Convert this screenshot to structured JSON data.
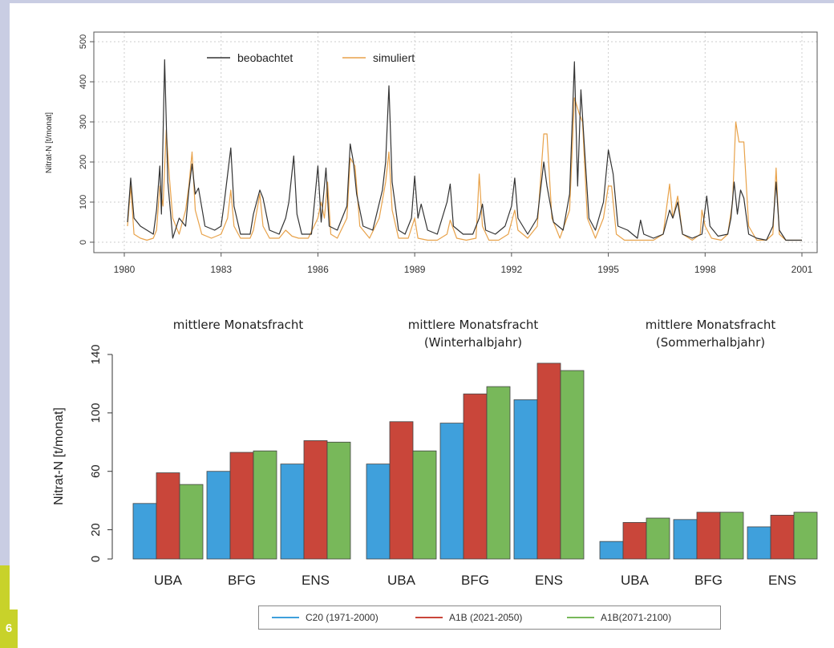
{
  "figure_number": "6",
  "chart_data": [
    {
      "type": "line",
      "xlabel": "",
      "ylabel": "Nitrat-N [t/monat]",
      "xlim": [
        1980,
        2001
      ],
      "ylim": [
        0,
        500
      ],
      "x_ticks": [
        "1980",
        "1983",
        "1986",
        "1989",
        "1992",
        "1995",
        "1998",
        "2001"
      ],
      "y_ticks": [
        "0",
        "100",
        "200",
        "300",
        "400",
        "500"
      ],
      "grid": true,
      "legend": {
        "placement": "top-left",
        "entries": [
          "beobachtet",
          "simuliert"
        ]
      },
      "series": [
        {
          "name": "beobachtet",
          "color": "#333333",
          "points": [
            [
              1980.1,
              50
            ],
            [
              1980.2,
              160
            ],
            [
              1980.3,
              60
            ],
            [
              1980.5,
              40
            ],
            [
              1980.7,
              30
            ],
            [
              1980.9,
              20
            ],
            [
              1981.0,
              80
            ],
            [
              1981.1,
              190
            ],
            [
              1981.15,
              70
            ],
            [
              1981.25,
              455
            ],
            [
              1981.35,
              150
            ],
            [
              1981.5,
              10
            ],
            [
              1981.7,
              60
            ],
            [
              1981.9,
              40
            ],
            [
              1982.0,
              130
            ],
            [
              1982.1,
              195
            ],
            [
              1982.2,
              120
            ],
            [
              1982.3,
              135
            ],
            [
              1982.5,
              40
            ],
            [
              1982.8,
              30
            ],
            [
              1983.0,
              40
            ],
            [
              1983.1,
              100
            ],
            [
              1983.3,
              235
            ],
            [
              1983.4,
              90
            ],
            [
              1983.6,
              20
            ],
            [
              1983.9,
              20
            ],
            [
              1984.0,
              70
            ],
            [
              1984.2,
              130
            ],
            [
              1984.3,
              110
            ],
            [
              1984.5,
              30
            ],
            [
              1984.8,
              20
            ],
            [
              1985.0,
              60
            ],
            [
              1985.1,
              100
            ],
            [
              1985.25,
              215
            ],
            [
              1985.35,
              70
            ],
            [
              1985.5,
              20
            ],
            [
              1985.8,
              20
            ],
            [
              1986.0,
              190
            ],
            [
              1986.1,
              50
            ],
            [
              1986.25,
              185
            ],
            [
              1986.35,
              40
            ],
            [
              1986.6,
              30
            ],
            [
              1986.9,
              90
            ],
            [
              1987.0,
              245
            ],
            [
              1987.1,
              200
            ],
            [
              1987.2,
              120
            ],
            [
              1987.4,
              40
            ],
            [
              1987.7,
              30
            ],
            [
              1988.0,
              130
            ],
            [
              1988.1,
              200
            ],
            [
              1988.2,
              390
            ],
            [
              1988.3,
              150
            ],
            [
              1988.5,
              30
            ],
            [
              1988.7,
              20
            ],
            [
              1988.9,
              60
            ],
            [
              1989.0,
              165
            ],
            [
              1989.1,
              60
            ],
            [
              1989.2,
              95
            ],
            [
              1989.4,
              30
            ],
            [
              1989.7,
              20
            ],
            [
              1990.0,
              100
            ],
            [
              1990.1,
              145
            ],
            [
              1990.2,
              40
            ],
            [
              1990.5,
              20
            ],
            [
              1990.8,
              20
            ],
            [
              1991.0,
              60
            ],
            [
              1991.1,
              95
            ],
            [
              1991.2,
              30
            ],
            [
              1991.5,
              20
            ],
            [
              1991.8,
              40
            ],
            [
              1992.0,
              90
            ],
            [
              1992.1,
              160
            ],
            [
              1992.2,
              60
            ],
            [
              1992.5,
              20
            ],
            [
              1992.8,
              60
            ],
            [
              1993.0,
              200
            ],
            [
              1993.1,
              140
            ],
            [
              1993.3,
              50
            ],
            [
              1993.6,
              30
            ],
            [
              1993.8,
              120
            ],
            [
              1993.95,
              450
            ],
            [
              1994.05,
              140
            ],
            [
              1994.15,
              380
            ],
            [
              1994.25,
              250
            ],
            [
              1994.4,
              60
            ],
            [
              1994.6,
              30
            ],
            [
              1994.85,
              100
            ],
            [
              1995.0,
              230
            ],
            [
              1995.15,
              170
            ],
            [
              1995.3,
              40
            ],
            [
              1995.6,
              30
            ],
            [
              1995.9,
              10
            ],
            [
              1996.0,
              55
            ],
            [
              1996.1,
              20
            ],
            [
              1996.4,
              10
            ],
            [
              1996.7,
              20
            ],
            [
              1996.9,
              80
            ],
            [
              1997.0,
              60
            ],
            [
              1997.15,
              100
            ],
            [
              1997.3,
              20
            ],
            [
              1997.6,
              10
            ],
            [
              1997.9,
              20
            ],
            [
              1998.05,
              115
            ],
            [
              1998.15,
              40
            ],
            [
              1998.4,
              15
            ],
            [
              1998.7,
              20
            ],
            [
              1998.8,
              60
            ],
            [
              1998.9,
              150
            ],
            [
              1999.0,
              70
            ],
            [
              1999.1,
              130
            ],
            [
              1999.2,
              110
            ],
            [
              1999.35,
              20
            ],
            [
              1999.6,
              10
            ],
            [
              1999.9,
              5
            ],
            [
              2000.1,
              40
            ],
            [
              2000.2,
              150
            ],
            [
              2000.3,
              30
            ],
            [
              2000.5,
              5
            ],
            [
              2000.8,
              5
            ],
            [
              2001.0,
              5
            ]
          ]
        },
        {
          "name": "simuliert",
          "color": "#e8a24a",
          "points": [
            [
              1980.1,
              40
            ],
            [
              1980.2,
              140
            ],
            [
              1980.3,
              20
            ],
            [
              1980.5,
              10
            ],
            [
              1980.7,
              5
            ],
            [
              1980.9,
              10
            ],
            [
              1981.0,
              30
            ],
            [
              1981.1,
              140
            ],
            [
              1981.2,
              90
            ],
            [
              1981.3,
              280
            ],
            [
              1981.4,
              160
            ],
            [
              1981.5,
              60
            ],
            [
              1981.7,
              20
            ],
            [
              1981.9,
              80
            ],
            [
              1982.0,
              140
            ],
            [
              1982.1,
              225
            ],
            [
              1982.2,
              80
            ],
            [
              1982.4,
              20
            ],
            [
              1982.7,
              10
            ],
            [
              1983.0,
              20
            ],
            [
              1983.2,
              60
            ],
            [
              1983.3,
              130
            ],
            [
              1983.4,
              40
            ],
            [
              1983.6,
              10
            ],
            [
              1983.9,
              10
            ],
            [
              1984.0,
              30
            ],
            [
              1984.2,
              120
            ],
            [
              1984.3,
              40
            ],
            [
              1984.5,
              10
            ],
            [
              1984.8,
              10
            ],
            [
              1985.0,
              30
            ],
            [
              1985.2,
              15
            ],
            [
              1985.4,
              10
            ],
            [
              1985.7,
              10
            ],
            [
              1986.0,
              60
            ],
            [
              1986.1,
              100
            ],
            [
              1986.2,
              60
            ],
            [
              1986.3,
              150
            ],
            [
              1986.4,
              20
            ],
            [
              1986.6,
              10
            ],
            [
              1986.9,
              60
            ],
            [
              1987.0,
              210
            ],
            [
              1987.15,
              190
            ],
            [
              1987.3,
              40
            ],
            [
              1987.6,
              10
            ],
            [
              1987.9,
              60
            ],
            [
              1988.1,
              150
            ],
            [
              1988.2,
              225
            ],
            [
              1988.3,
              80
            ],
            [
              1988.5,
              10
            ],
            [
              1988.8,
              10
            ],
            [
              1989.0,
              60
            ],
            [
              1989.1,
              10
            ],
            [
              1989.4,
              5
            ],
            [
              1989.7,
              5
            ],
            [
              1990.0,
              20
            ],
            [
              1990.1,
              55
            ],
            [
              1990.3,
              10
            ],
            [
              1990.6,
              5
            ],
            [
              1990.9,
              10
            ],
            [
              1991.0,
              170
            ],
            [
              1991.1,
              40
            ],
            [
              1991.3,
              5
            ],
            [
              1991.6,
              5
            ],
            [
              1991.9,
              20
            ],
            [
              1992.1,
              80
            ],
            [
              1992.2,
              30
            ],
            [
              1992.5,
              10
            ],
            [
              1992.8,
              40
            ],
            [
              1993.0,
              270
            ],
            [
              1993.1,
              270
            ],
            [
              1993.25,
              60
            ],
            [
              1993.5,
              10
            ],
            [
              1993.8,
              80
            ],
            [
              1993.95,
              360
            ],
            [
              1994.1,
              320
            ],
            [
              1994.2,
              300
            ],
            [
              1994.35,
              60
            ],
            [
              1994.6,
              10
            ],
            [
              1994.85,
              60
            ],
            [
              1995.0,
              140
            ],
            [
              1995.1,
              140
            ],
            [
              1995.25,
              20
            ],
            [
              1995.5,
              5
            ],
            [
              1995.8,
              5
            ],
            [
              1996.1,
              5
            ],
            [
              1996.4,
              5
            ],
            [
              1996.7,
              20
            ],
            [
              1996.9,
              145
            ],
            [
              1997.0,
              60
            ],
            [
              1997.15,
              115
            ],
            [
              1997.3,
              20
            ],
            [
              1997.6,
              5
            ],
            [
              1997.85,
              20
            ],
            [
              1997.9,
              80
            ],
            [
              1998.0,
              40
            ],
            [
              1998.2,
              10
            ],
            [
              1998.5,
              5
            ],
            [
              1998.7,
              20
            ],
            [
              1998.85,
              100
            ],
            [
              1998.95,
              300
            ],
            [
              1999.05,
              250
            ],
            [
              1999.2,
              250
            ],
            [
              1999.35,
              40
            ],
            [
              1999.6,
              5
            ],
            [
              1999.9,
              5
            ],
            [
              2000.1,
              20
            ],
            [
              2000.2,
              185
            ],
            [
              2000.3,
              20
            ],
            [
              2000.5,
              5
            ],
            [
              2000.8,
              5
            ],
            [
              2001.0,
              5
            ]
          ]
        }
      ]
    },
    {
      "type": "bar",
      "xlabel": "",
      "ylabel": "Nitrat-N [t/monat]",
      "ylim": [
        0,
        140
      ],
      "y_ticks": [
        "0",
        "20",
        "60",
        "100",
        "140"
      ],
      "groups": [
        {
          "title_lines": [
            "mittlere Monatsfracht"
          ],
          "categories": [
            "UBA",
            "BFG",
            "ENS"
          ]
        },
        {
          "title_lines": [
            "mittlere Monatsfracht",
            "(Winterhalbjahr)"
          ],
          "categories": [
            "UBA",
            "BFG",
            "ENS"
          ]
        },
        {
          "title_lines": [
            "mittlere Monatsfracht",
            "(Sommerhalbjahr)"
          ],
          "categories": [
            "UBA",
            "BFG",
            "ENS"
          ]
        }
      ],
      "series": [
        {
          "name": "C20 (1971-2000)",
          "color": "#3fa0dc",
          "values": [
            [
              38,
              60,
              65
            ],
            [
              65,
              93,
              109
            ],
            [
              12,
              27,
              22
            ]
          ]
        },
        {
          "name": "A1B (2021-2050)",
          "color": "#c9463a",
          "values": [
            [
              59,
              73,
              81
            ],
            [
              94,
              113,
              134
            ],
            [
              25,
              32,
              30
            ]
          ]
        },
        {
          "name": "A1B(2071-2100)",
          "color": "#78b85a",
          "values": [
            [
              51,
              74,
              80
            ],
            [
              74,
              118,
              129
            ],
            [
              28,
              32,
              32
            ]
          ]
        }
      ],
      "legend": {
        "placement": "bottom"
      }
    }
  ]
}
